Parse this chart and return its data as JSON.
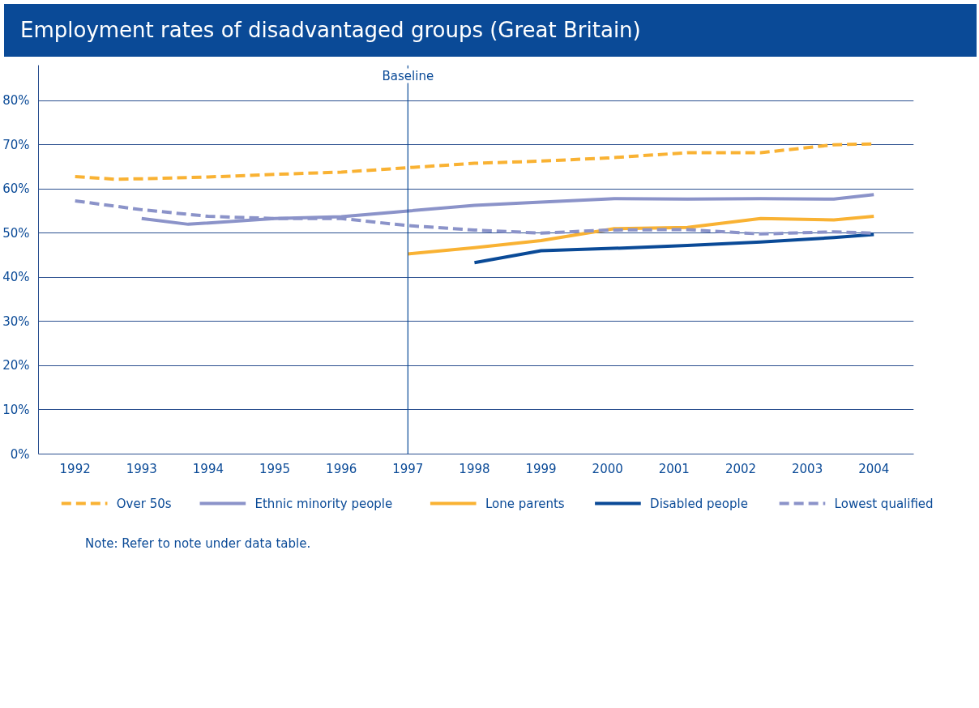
{
  "chart_data": {
    "type": "line",
    "title": "Employment rates of disadvantaged groups (Great Britain)",
    "xlim": [
      1991.45,
      2004.6
    ],
    "xticks": [
      1992,
      1993,
      1994,
      1995,
      1996,
      1997,
      1998,
      1999,
      2000,
      2001,
      2002,
      2003,
      2004
    ],
    "ylim": [
      0,
      88
    ],
    "yticks": [
      {
        "value": 0,
        "label": "0%"
      },
      {
        "value": 10,
        "label": "10%"
      },
      {
        "value": 20,
        "label": "20%"
      },
      {
        "value": 30,
        "label": "30%"
      },
      {
        "value": 40,
        "label": "40%"
      },
      {
        "value": 50,
        "label": "50%"
      },
      {
        "value": 60,
        "label": "60%"
      },
      {
        "value": 70,
        "label": "70%"
      },
      {
        "value": 80,
        "label": "80%"
      }
    ],
    "grid": "y",
    "legend": "bottom",
    "ref_lines": [
      {
        "axis": "x",
        "value": 1997,
        "label": "Baseline",
        "color": "#0a4a97"
      }
    ],
    "series": [
      {
        "name": "Over 50s",
        "color": "#f9b233",
        "line_style": "dashed",
        "x": [
          1992,
          1992.6,
          1993,
          1994,
          1995,
          1996,
          1997,
          1998,
          1999,
          2000,
          2001.2,
          2002.3,
          2003.4,
          2004
        ],
        "values": [
          62.8,
          62.2,
          62.3,
          62.7,
          63.3,
          63.8,
          64.8,
          65.8,
          66.3,
          67,
          68.2,
          68.2,
          70,
          70.2
        ]
      },
      {
        "name": "Ethnic minority people",
        "color": "#8b93c9",
        "line_style": "solid",
        "x": [
          1993,
          1993.7,
          1995,
          1996,
          1997,
          1998,
          1999,
          2000.1,
          2001.2,
          2002.3,
          2003.4,
          2004
        ],
        "values": [
          53.3,
          52,
          53.3,
          53.7,
          55,
          56.3,
          57,
          57.8,
          57.7,
          57.8,
          57.7,
          58.7
        ]
      },
      {
        "name": "Lone parents",
        "color": "#f9b233",
        "line_style": "solid",
        "x": [
          1997,
          1998,
          1999,
          2000.1,
          2001.2,
          2002.3,
          2003.4,
          2004
        ],
        "values": [
          45.3,
          46.7,
          48.3,
          51,
          51.3,
          53.3,
          53,
          53.8
        ]
      },
      {
        "name": "Disabled people",
        "color": "#0a4a97",
        "line_style": "solid",
        "x": [
          1998,
          1999,
          2000,
          2001.2,
          2002.3,
          2003.4,
          2004
        ],
        "values": [
          43.3,
          46,
          46.5,
          47.2,
          48,
          49,
          49.7
        ]
      },
      {
        "name": "Lowest qualified",
        "color": "#8b93c9",
        "line_style": "dashed",
        "x": [
          1992,
          1993,
          1994,
          1995,
          1996,
          1997,
          1998,
          1999,
          2000,
          2001.2,
          2002.3,
          2003.4,
          2004
        ],
        "values": [
          57.3,
          55.3,
          53.8,
          53.3,
          53.3,
          51.7,
          50.7,
          50,
          50.7,
          50.8,
          49.8,
          50.3,
          50
        ]
      }
    ],
    "annotations": [
      "Note: Refer to note under data table."
    ]
  }
}
